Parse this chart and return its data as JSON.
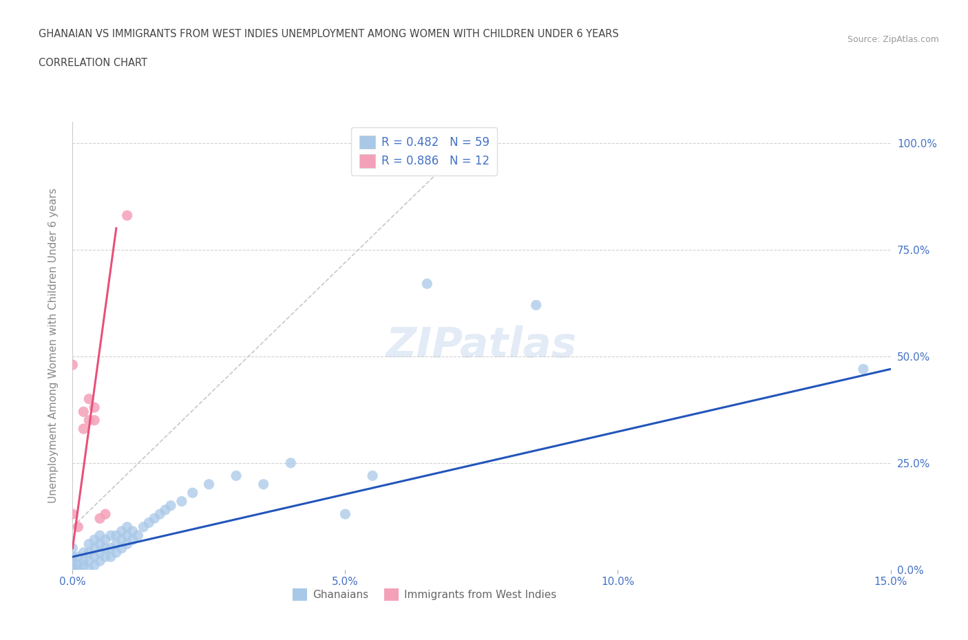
{
  "title_line1": "GHANAIAN VS IMMIGRANTS FROM WEST INDIES UNEMPLOYMENT AMONG WOMEN WITH CHILDREN UNDER 6 YEARS",
  "title_line2": "CORRELATION CHART",
  "source_text": "Source: ZipAtlas.com",
  "ylabel": "Unemployment Among Women with Children Under 6 years",
  "xlim": [
    0.0,
    0.15
  ],
  "ylim": [
    0.0,
    1.05
  ],
  "yticks": [
    0.0,
    0.25,
    0.5,
    0.75,
    1.0
  ],
  "ytick_labels": [
    "0.0%",
    "25.0%",
    "50.0%",
    "75.0%",
    "100.0%"
  ],
  "xticks": [
    0.0,
    0.05,
    0.1,
    0.15
  ],
  "xtick_labels": [
    "0.0%",
    "5.0%",
    "10.0%",
    "15.0%"
  ],
  "ghanaian_color": "#a8c8e8",
  "westindies_color": "#f4a0b8",
  "ghanaian_line_color": "#2255bb",
  "westindies_line_color": "#e8507a",
  "trend_line_dash_color": "#c8c8c8",
  "R_ghanaian": 0.482,
  "N_ghanaian": 59,
  "R_westindies": 0.886,
  "N_westindies": 12,
  "ghanaian_x": [
    0.0,
    0.0,
    0.0,
    0.0,
    0.0,
    0.0,
    0.001,
    0.001,
    0.001,
    0.002,
    0.002,
    0.002,
    0.003,
    0.003,
    0.003,
    0.003,
    0.004,
    0.004,
    0.004,
    0.004,
    0.005,
    0.005,
    0.005,
    0.005,
    0.006,
    0.006,
    0.006,
    0.007,
    0.007,
    0.007,
    0.008,
    0.008,
    0.008,
    0.009,
    0.009,
    0.009,
    0.01,
    0.01,
    0.01,
    0.011,
    0.011,
    0.012,
    0.013,
    0.014,
    0.015,
    0.016,
    0.017,
    0.018,
    0.02,
    0.022,
    0.025,
    0.03,
    0.035,
    0.04,
    0.05,
    0.055,
    0.065,
    0.085,
    0.145
  ],
  "ghanaian_y": [
    0.0,
    0.0,
    0.01,
    0.02,
    0.03,
    0.05,
    0.0,
    0.01,
    0.03,
    0.01,
    0.02,
    0.04,
    0.0,
    0.02,
    0.04,
    0.06,
    0.01,
    0.03,
    0.05,
    0.07,
    0.02,
    0.04,
    0.06,
    0.08,
    0.03,
    0.05,
    0.07,
    0.03,
    0.05,
    0.08,
    0.04,
    0.06,
    0.08,
    0.05,
    0.07,
    0.09,
    0.06,
    0.08,
    0.1,
    0.07,
    0.09,
    0.08,
    0.1,
    0.11,
    0.12,
    0.13,
    0.14,
    0.15,
    0.16,
    0.18,
    0.2,
    0.22,
    0.2,
    0.25,
    0.13,
    0.22,
    0.67,
    0.62,
    0.47
  ],
  "westindies_x": [
    0.0,
    0.0,
    0.001,
    0.002,
    0.002,
    0.003,
    0.003,
    0.004,
    0.004,
    0.005,
    0.006,
    0.01
  ],
  "westindies_y": [
    0.13,
    0.48,
    0.1,
    0.33,
    0.37,
    0.35,
    0.4,
    0.35,
    0.38,
    0.12,
    0.13,
    0.83
  ],
  "ghanaian_line_x": [
    0.0,
    0.15
  ],
  "ghanaian_line_y": [
    0.03,
    0.47
  ],
  "westindies_line_x": [
    0.0,
    0.008
  ],
  "westindies_line_y": [
    0.05,
    0.8
  ],
  "dash_line_x": [
    0.0,
    0.075
  ],
  "dash_line_y": [
    0.1,
    1.03
  ],
  "background_color": "#ffffff",
  "grid_color": "#cccccc",
  "title_color": "#444444",
  "axis_label_color": "#888888",
  "tick_label_color": "#4472c4",
  "legend_text_color": "#4472c4",
  "watermark_text": "ZIPatlas",
  "legend1_label": "R = 0.482   N = 59",
  "legend2_label": "R = 0.886   N = 12",
  "bottom_legend1": "Ghanaians",
  "bottom_legend2": "Immigrants from West Indies"
}
